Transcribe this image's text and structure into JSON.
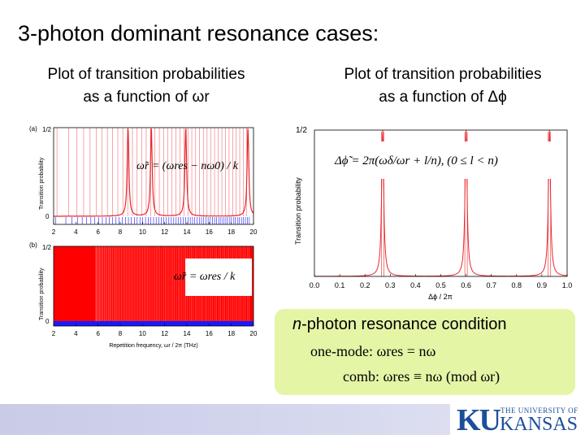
{
  "slide": {
    "title": "3-photon dominant resonance cases:",
    "left_subtitle_line1": "Plot of transition probabilities",
    "left_subtitle_line2": "as a function of ωr",
    "right_subtitle_line1": "Plot of transition probabilities",
    "right_subtitle_line2": "as a function of Δϕ"
  },
  "panel_a": {
    "label": "(a)",
    "ylabel": "Transition probability",
    "ytick_top": "1/2",
    "ytick_bottom": "0",
    "xticks": [
      "2",
      "4",
      "6",
      "8",
      "10",
      "12",
      "14",
      "16",
      "18",
      "20"
    ],
    "equation": "ω̃r = (ωres − nω0) / k"
  },
  "panel_b": {
    "label": "(b)",
    "ylabel": "Transition probability",
    "ytick_top": "1/2",
    "ytick_bottom": "0",
    "xticks": [
      "2",
      "4",
      "6",
      "8",
      "10",
      "12",
      "14",
      "16",
      "18",
      "20"
    ],
    "xlabel": "Repetition frequency, ωr / 2π (THz)",
    "equation": "ω̃r = ωres / k"
  },
  "chart_data": [
    {
      "type": "line",
      "panel": "(a)",
      "ylabel": "Transition probability",
      "xlim": [
        2,
        20
      ],
      "ylim": [
        0,
        0.5
      ],
      "dominant_peaks_x": [
        8.7,
        10.8,
        13.9,
        19.5
      ],
      "peak_height": 0.5
    },
    {
      "type": "line",
      "panel": "(b)",
      "ylabel": "Transition probability",
      "xlabel": "Repetition frequency, ωr / 2π (THz)",
      "xlim": [
        2,
        20
      ],
      "ylim": [
        0,
        0.5
      ]
    },
    {
      "type": "line",
      "panel": "right",
      "ylabel": "Transition probability",
      "xlabel": "Δϕ / 2π",
      "xlim": [
        0,
        1
      ],
      "ylim": [
        0,
        0.5
      ],
      "xticks": [
        "0.0",
        "0.1",
        "0.2",
        "0.3",
        "0.4",
        "0.5",
        "0.6",
        "0.7",
        "0.8",
        "0.9",
        "1.0"
      ],
      "ytick_top": "1/2",
      "peaks_x": [
        0.27,
        0.6,
        0.93
      ],
      "peak_height": 0.5,
      "equation": "Δϕ̃ = 2π(ωδ/ωr + l/n), (0 ≤ l < n)"
    }
  ],
  "resonance": {
    "heading_var": "n",
    "heading_rest": "-photon resonance condition",
    "line1": "one-mode: ωres = nω",
    "line2": "comb: ωres ≡ nω   (mod ωr)"
  },
  "logo": {
    "mark": "KU",
    "top": "THE UNIVERSITY OF",
    "bottom": "KANSAS"
  },
  "colors": {
    "curve": "#e8262b",
    "fill": "#ff0000",
    "blue": "#1a1aff",
    "box": "#e4f5a6",
    "logo": "#1b4f9a"
  }
}
